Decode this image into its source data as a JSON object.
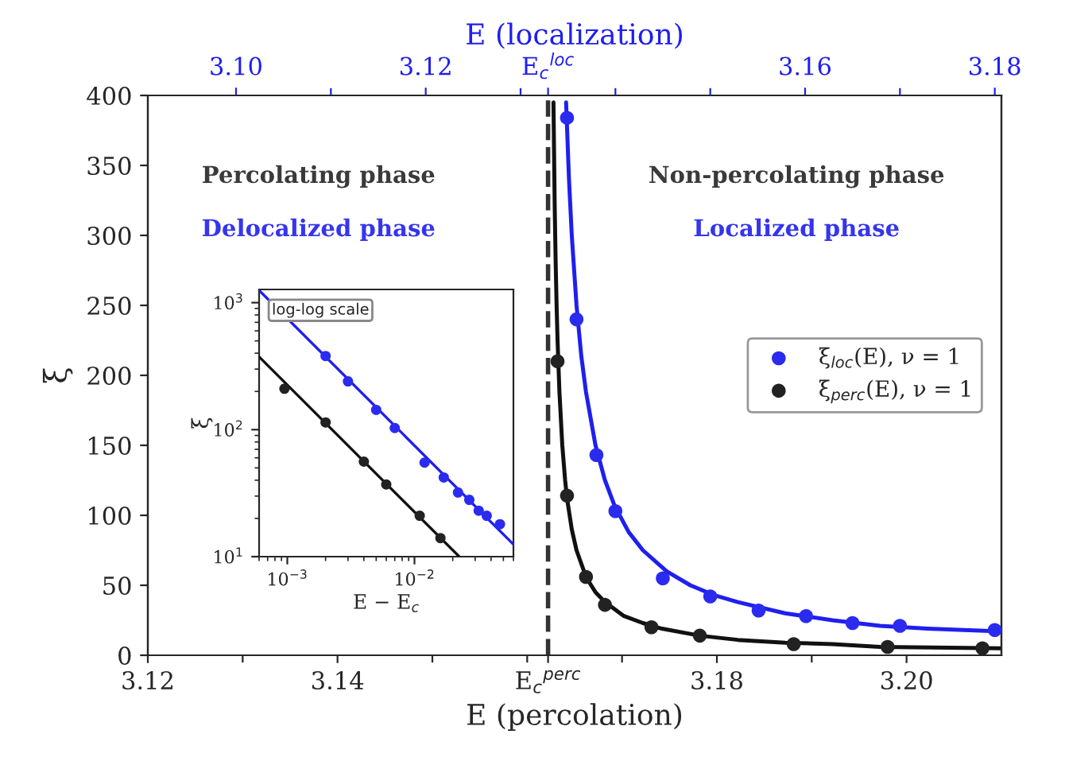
{
  "chart_data": [
    {
      "type": "scatter",
      "xlabel": "E (percolation)",
      "ylabel": "ξ",
      "x2label": "E (localization)",
      "xlim": [
        3.12,
        3.21
      ],
      "xticks": [
        3.12,
        {
          "value": 3.13,
          "label": null
        },
        3.14,
        {
          "value": 3.15,
          "label": null
        },
        {
          "value": 3.16,
          "label": null
        },
        {
          "value": 3.1622,
          "label": "E$_{c}$$^{perc}$"
        },
        {
          "value": 3.17,
          "label": null
        },
        3.18,
        {
          "value": 3.19,
          "label": null
        },
        {
          "value": 3.2,
          "label": "3.20"
        }
      ],
      "x2lim": [
        3.0907,
        3.1807
      ],
      "x2ticks": [
        {
          "value": 3.1,
          "label": "3.10"
        },
        {
          "value": 3.11,
          "label": null
        },
        3.12,
        {
          "value": 3.13,
          "label": null
        },
        {
          "value": 3.1329,
          "label": "E$_{c}$$^{loc}$"
        },
        {
          "value": 3.14,
          "label": null
        },
        {
          "value": 3.15,
          "label": null
        },
        3.16,
        {
          "value": 3.17,
          "label": null
        },
        {
          "value": 3.18,
          "label": "3.18"
        }
      ],
      "ylim": [
        0,
        400
      ],
      "yticks": [
        0,
        50,
        100,
        150,
        200,
        250,
        300,
        350,
        400
      ],
      "grid": false,
      "legend": "center right",
      "marker": "circle",
      "ref_lines": [
        {
          "axis": "x",
          "value": 3.1622,
          "color": "#333333",
          "line_style": "dashed"
        }
      ],
      "annotations": [
        "Percolating phase",
        "Delocalized phase",
        "Non-percolating phase",
        "Localized phase"
      ],
      "series": [
        {
          "type": "line",
          "marker": "none",
          "axis": "x2",
          "color": "#1f1fee",
          "x": [
            3.1348,
            3.1351,
            3.1354,
            3.1359,
            3.1364,
            3.1369,
            3.1379,
            3.1389,
            3.1399,
            3.1414,
            3.1429,
            3.1454,
            3.1479,
            3.1504,
            3.1529,
            3.1579,
            3.1629,
            3.1679,
            3.1729,
            3.1806
          ],
          "values": [
            395,
            341,
            300,
            250,
            214,
            188,
            150,
            125,
            107,
            88,
            75,
            60,
            50,
            43,
            38,
            30,
            25,
            21,
            19,
            17
          ]
        },
        {
          "axis": "x2",
          "name": "ξ$_{loc}$(E), ν = 1",
          "color": "#2b2bf0",
          "x": [
            3.1349,
            3.1359,
            3.138,
            3.14,
            3.145,
            3.15,
            3.1551,
            3.1601,
            3.165,
            3.17,
            3.18
          ],
          "values": [
            384,
            240,
            143,
            103,
            55,
            42,
            32,
            28,
            23,
            21,
            18
          ]
        },
        {
          "type": "line",
          "marker": "none",
          "color": "#111111",
          "x": [
            3.16277,
            3.1629,
            3.163,
            3.1631,
            3.1632,
            3.1634,
            3.1637,
            3.164,
            3.1642,
            3.1647,
            3.1652,
            3.1662,
            3.1672,
            3.1682,
            3.1702,
            3.1722,
            3.1742,
            3.1782,
            3.1822,
            3.1872,
            3.1922,
            3.1972,
            3.21
          ],
          "values": [
            395,
            321,
            281,
            250,
            225,
            188,
            150,
            125,
            112,
            90,
            75,
            56,
            45,
            38,
            28,
            23,
            19,
            14,
            11,
            9,
            8,
            6,
            5
          ]
        },
        {
          "name": "ξ$_{perc}$(E), ν = 1",
          "color": "#222222",
          "x": [
            3.1632,
            3.1642,
            3.1662,
            3.1682,
            3.1731,
            3.1782,
            3.1881,
            3.198,
            3.208
          ],
          "values": [
            210,
            114,
            56,
            36,
            20,
            14,
            8,
            6,
            5
          ]
        }
      ]
    },
    {
      "type": "scatter",
      "log": "xy",
      "xlabel": "E − E$_{c}$",
      "ylabel": "ξ",
      "xlim": [
        0.0006,
        0.06
      ],
      "ylim": [
        10,
        1270
      ],
      "xticks": [
        {
          "value": 0.001,
          "label": "10$^{−3}$"
        },
        {
          "value": 0.01,
          "label": "10$^{−2}$"
        }
      ],
      "yticks": [
        {
          "value": 10,
          "label": "10$^{1}$"
        },
        {
          "value": 100,
          "label": "10$^{2}$"
        },
        {
          "value": 1000,
          "label": "10$^{3}$"
        }
      ],
      "grid": false,
      "marker": "circle",
      "annotations": [
        "log-log scale"
      ],
      "series": [
        {
          "type": "line",
          "marker": "none",
          "color": "#1f1fee",
          "x": [
            0.0006,
            0.06
          ],
          "values": [
            1250,
            12.5
          ]
        },
        {
          "color": "#2b2bf0",
          "x": [
            0.002,
            0.003,
            0.005,
            0.007,
            0.012,
            0.017,
            0.022,
            0.027,
            0.032,
            0.037,
            0.047
          ],
          "values": [
            380,
            240,
            143,
            103,
            55,
            42,
            32,
            28,
            23,
            21,
            18
          ]
        },
        {
          "type": "line",
          "marker": "none",
          "color": "#111111",
          "x": [
            0.0006,
            0.0225
          ],
          "values": [
            375,
            10
          ]
        },
        {
          "color": "#222222",
          "x": [
            0.00095,
            0.002,
            0.004,
            0.006,
            0.011,
            0.016
          ],
          "values": [
            210,
            114,
            56,
            37,
            21,
            14
          ]
        }
      ]
    }
  ]
}
